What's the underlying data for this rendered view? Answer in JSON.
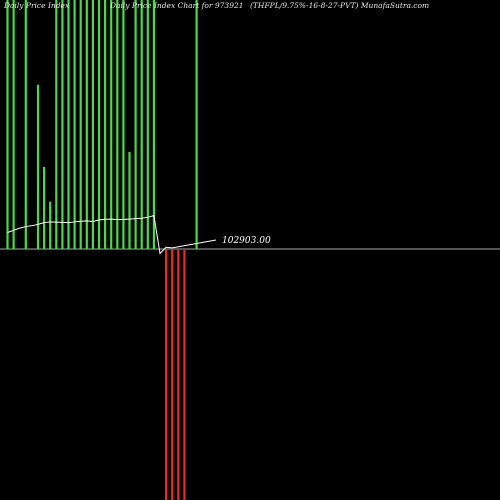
{
  "header": {
    "left": "Daily Price  Index",
    "middle": "Daily Price Index Chart for 973921",
    "right": "(THFPL/9.75%-16-8-27-PVT) MunafaSutra.com"
  },
  "value_label": "102903.00",
  "colors": {
    "background": "#000000",
    "up_bar": "#44dd44",
    "down_bar": "#ff2222",
    "baseline": "#aaaaaa",
    "price_line": "#ffffff"
  },
  "chart_data": {
    "type": "bar",
    "title": "",
    "xlabel": "",
    "ylabel": "",
    "ylim": [
      -1,
      1
    ],
    "series": [
      {
        "values": [
          1,
          1,
          0,
          1,
          0,
          0.66,
          0.33,
          0.19,
          1,
          1,
          1,
          1,
          1,
          1,
          1,
          1,
          1,
          1,
          1,
          1,
          0.39,
          1,
          1,
          1,
          1,
          0,
          -1,
          -1,
          -1,
          -1,
          0,
          1
        ]
      }
    ],
    "price_line": [
      7.5,
      8.5,
      9.5,
      10.2,
      10.6,
      11.2,
      12.0,
      12.3,
      12.2,
      12.1,
      12.0,
      12.3,
      12.6,
      12.8,
      12.5,
      13.2,
      13.5,
      13.6,
      13.4,
      13.4,
      13.6,
      13.8,
      14.0,
      14.4,
      15.2,
      -2,
      0.8,
      0.5
    ]
  }
}
